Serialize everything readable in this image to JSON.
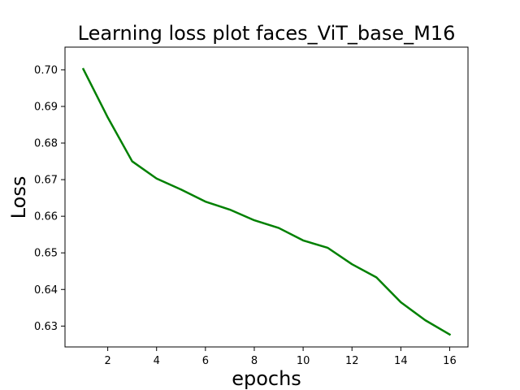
{
  "chart_data": {
    "type": "line",
    "title": "Learning loss plot faces_ViT_base_M16",
    "xlabel": "epochs",
    "ylabel": "Loss",
    "xlim": [
      0.25,
      16.75
    ],
    "ylim": [
      0.6243,
      0.7062
    ],
    "x_ticks": [
      2,
      4,
      6,
      8,
      10,
      12,
      14,
      16
    ],
    "x_tick_labels": [
      "2",
      "4",
      "6",
      "8",
      "10",
      "12",
      "14",
      "16"
    ],
    "y_ticks": [
      0.63,
      0.64,
      0.65,
      0.66,
      0.67,
      0.68,
      0.69,
      0.7
    ],
    "y_tick_labels": [
      "0.63",
      "0.64",
      "0.65",
      "0.66",
      "0.67",
      "0.68",
      "0.69",
      "0.70"
    ],
    "grid": false,
    "legend": "none",
    "series": [
      {
        "color": "#008000",
        "x": [
          1,
          2,
          3,
          4,
          5,
          6,
          7,
          8,
          9,
          10,
          11,
          12,
          13,
          14,
          15,
          16
        ],
        "y": [
          0.7002,
          0.687,
          0.675,
          0.6703,
          0.6673,
          0.664,
          0.6618,
          0.6589,
          0.6568,
          0.6534,
          0.6514,
          0.6469,
          0.6433,
          0.6365,
          0.6316,
          0.6277
        ]
      }
    ]
  }
}
